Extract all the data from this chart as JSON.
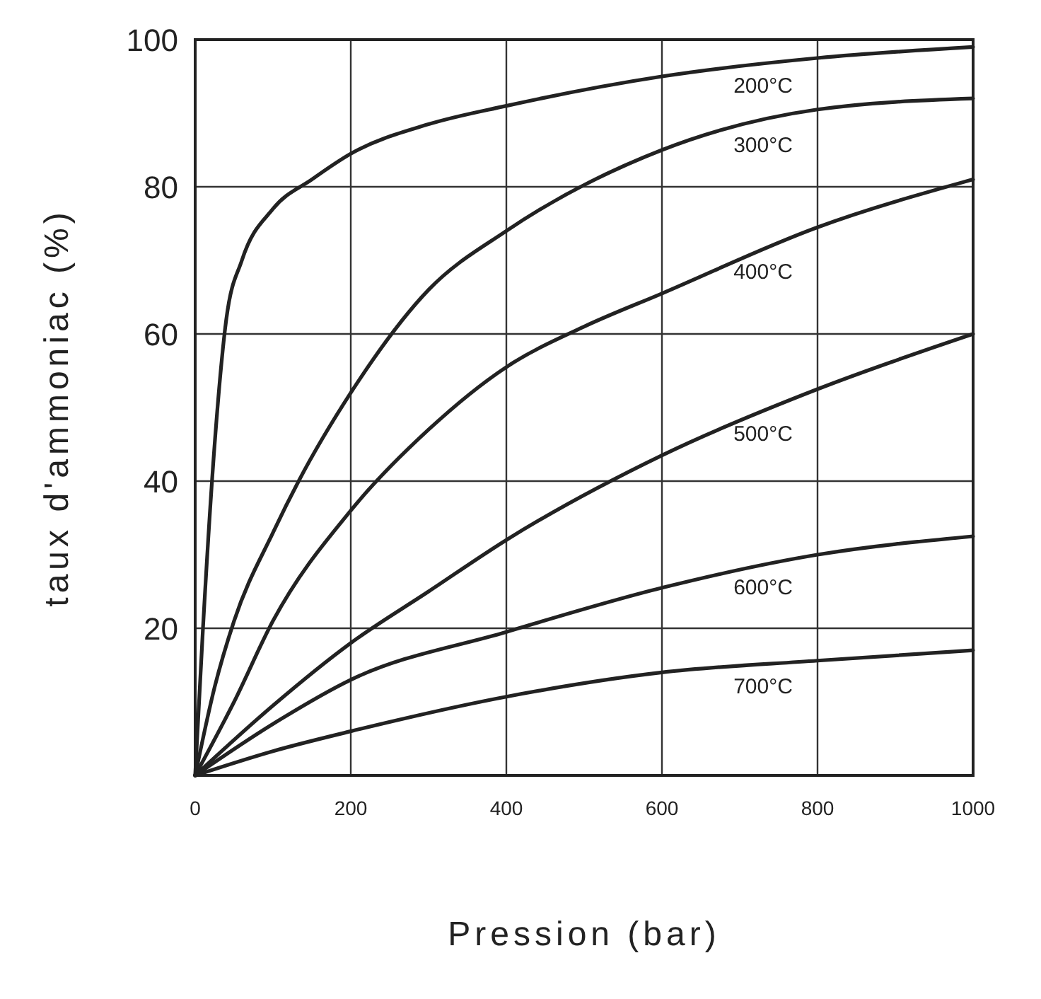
{
  "chart_data": {
    "type": "line",
    "xlabel": "Pression (bar)",
    "ylabel": "taux d'ammoniac (%)",
    "xlim": [
      0,
      1000
    ],
    "ylim": [
      0,
      100
    ],
    "xticks": [
      0,
      200,
      400,
      600,
      800,
      1000
    ],
    "yticks": [
      {
        "value": 0,
        "label": null
      },
      20,
      40,
      60,
      80,
      100
    ],
    "grid": true,
    "marker": "none",
    "line_style": "solid",
    "series": [
      {
        "name": "200°C",
        "color": "#222222",
        "x": [
          0,
          10,
          25,
          40,
          60,
          100,
          150,
          200,
          300,
          400,
          600,
          800,
          1000
        ],
        "values": [
          0,
          20,
          45,
          62,
          70,
          77,
          81,
          84.5,
          88.5,
          91,
          95,
          97.5,
          99
        ]
      },
      {
        "name": "300°C",
        "color": "#222222",
        "x": [
          0,
          25,
          50,
          100,
          133,
          200,
          300,
          400,
          600,
          800,
          1000
        ],
        "values": [
          0,
          12,
          21,
          33,
          40,
          52,
          66,
          74,
          85,
          90.5,
          92
        ]
      },
      {
        "name": "400°C",
        "color": "#222222",
        "x": [
          0,
          50,
          100,
          200,
          300,
          400,
          500,
          600,
          800,
          1000
        ],
        "values": [
          0,
          10,
          21,
          36,
          47,
          55.5,
          61,
          65.5,
          74.5,
          81
        ]
      },
      {
        "name": "500°C",
        "color": "#222222",
        "x": [
          0,
          100,
          200,
          300,
          400,
          600,
          800,
          1000
        ],
        "values": [
          0,
          9.5,
          18,
          25,
          32,
          43.5,
          52.5,
          60
        ]
      },
      {
        "name": "600°C",
        "color": "#222222",
        "x": [
          0,
          100,
          200,
          400,
          600,
          800,
          1000
        ],
        "values": [
          0,
          7,
          13,
          19.5,
          25.5,
          30,
          32.5
        ]
      },
      {
        "name": "700°C",
        "color": "#222222",
        "x": [
          0,
          100,
          200,
          400,
          600,
          800,
          1000
        ],
        "values": [
          0,
          3.3,
          6,
          10.7,
          14,
          15.6,
          17
        ]
      }
    ]
  }
}
